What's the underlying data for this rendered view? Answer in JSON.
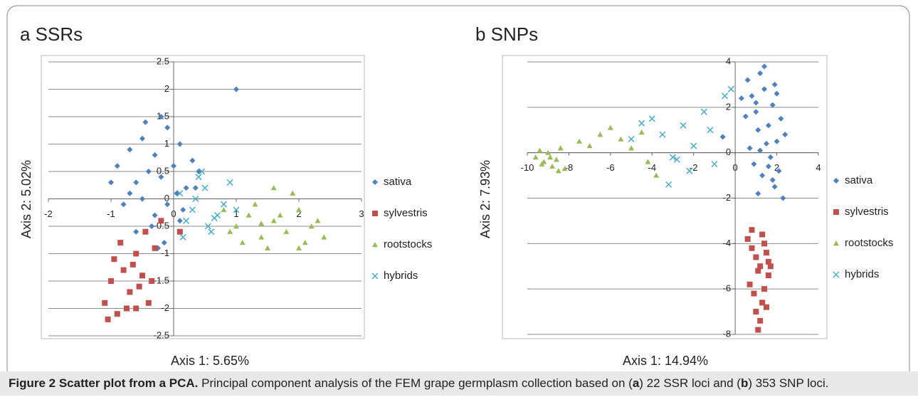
{
  "chart_data": [
    {
      "type": "scatter",
      "title": "a SSRs",
      "xlabel": "Axis 1:  5.65%",
      "ylabel": "Axis 2: 5.02%",
      "xlim": [
        -2,
        3
      ],
      "ylim": [
        -2.5,
        2.5
      ],
      "xticks": [
        -2,
        -1,
        0,
        1,
        2,
        3
      ],
      "yticks": [
        -2.5,
        -2,
        -1.5,
        -1,
        -0.5,
        0,
        0.5,
        1,
        1.5,
        2,
        2.5
      ],
      "grid": true,
      "legend": "right",
      "series": [
        {
          "name": "sativa",
          "color": "#4f81bd",
          "marker": "diamond",
          "x": [
            -0.9,
            -0.7,
            -0.5,
            -0.3,
            -0.1,
            0.1,
            0.3,
            -0.6,
            -0.4,
            -0.2,
            0,
            0.2,
            -0.8,
            -0.5,
            -0.3,
            -0.1,
            0.05,
            -0.6,
            -0.35,
            -0.15,
            0.1,
            -0.45,
            -0.25,
            0.35,
            1,
            -0.7,
            -0.2,
            0.4,
            -1,
            0.15
          ],
          "values": [
            0.6,
            0.9,
            1.1,
            0.8,
            1.3,
            1.0,
            0.7,
            0.3,
            0.5,
            0.4,
            0.6,
            0.2,
            -0.1,
            0,
            -0.3,
            -0.1,
            0.1,
            -0.6,
            -0.5,
            -0.8,
            -0.4,
            1.4,
            -0.9,
            0.2,
            2,
            0.1,
            1.5,
            0.5,
            0.3,
            -0.2
          ]
        },
        {
          "name": "sylvestris",
          "color": "#c0504d",
          "marker": "square",
          "x": [
            -1.1,
            -1,
            -0.9,
            -0.8,
            -0.7,
            -0.6,
            -0.5,
            -0.4,
            -0.3,
            -0.95,
            -0.75,
            -0.55,
            -0.85,
            -0.65,
            -0.45,
            -1.05,
            -0.35,
            -0.2,
            0.1,
            -0.6
          ],
          "values": [
            -1.9,
            -1.5,
            -2.1,
            -1.3,
            -1.7,
            -1.0,
            -1.4,
            -1.9,
            -0.9,
            -1.1,
            -2.0,
            -1.6,
            -0.8,
            -1.2,
            -0.6,
            -2.2,
            -1.5,
            -0.4,
            -0.6,
            -2.0
          ]
        },
        {
          "name": "rootstocks",
          "color": "#9bbb59",
          "marker": "triangle",
          "x": [
            0.8,
            1.0,
            1.2,
            1.4,
            1.6,
            1.8,
            2.0,
            2.2,
            2.4,
            1.1,
            1.3,
            1.5,
            1.7,
            1.9,
            2.1,
            2.3,
            0.9,
            1.6,
            2.0,
            1.4
          ],
          "values": [
            -0.2,
            -0.5,
            -0.3,
            -0.7,
            -0.4,
            -0.6,
            -0.2,
            -0.5,
            -0.7,
            -0.8,
            -0.1,
            -0.9,
            -0.3,
            0.1,
            -0.8,
            -0.4,
            -0.6,
            0.2,
            -0.9,
            -0.45
          ]
        },
        {
          "name": "hybrids",
          "color": "#4bacc6",
          "marker": "cross",
          "x": [
            0.1,
            0.3,
            0.5,
            0.7,
            0.9,
            0.2,
            0.4,
            0.6,
            0.8,
            0.35,
            0.55,
            1.0,
            0.15,
            0.45,
            0.65
          ],
          "values": [
            0.1,
            -0.2,
            0.2,
            -0.3,
            0.3,
            -0.4,
            0.4,
            -0.6,
            -0.1,
            0,
            -0.5,
            -0.2,
            -0.7,
            0.5,
            -0.35
          ]
        }
      ]
    },
    {
      "type": "scatter",
      "title": "b SNPs",
      "xlabel": "Axis 1:  14.94%",
      "ylabel": "Axis 2: 7.93%",
      "xlim": [
        -10,
        4
      ],
      "ylim": [
        -8,
        4
      ],
      "xticks": [
        -10,
        -8,
        -6,
        -4,
        -2,
        0,
        2,
        4
      ],
      "yticks": [
        -8,
        -6,
        -4,
        -2,
        0,
        2,
        4
      ],
      "grid": true,
      "legend": "right",
      "series": [
        {
          "name": "sativa",
          "color": "#4f81bd",
          "marker": "diamond",
          "x": [
            0.6,
            0.8,
            1,
            1.2,
            1.4,
            1.6,
            1.8,
            2,
            2.2,
            0.7,
            0.9,
            1.1,
            1.3,
            1.5,
            1.7,
            1.9,
            2.1,
            2.4,
            1.0,
            1.4,
            1.8,
            2.3,
            0.5,
            1.2,
            1.6,
            2.0,
            0.3,
            -0.6,
            1.1,
            1.9
          ],
          "values": [
            3.2,
            2.5,
            1.8,
            3.5,
            2.8,
            1.2,
            2.1,
            0.5,
            1.5,
            0.2,
            -0.5,
            1.0,
            -1.0,
            0.4,
            -0.2,
            -1.5,
            -0.8,
            0.8,
            2.2,
            3.8,
            -1.2,
            -2.0,
            1.6,
            0.1,
            -0.6,
            2.6,
            2.4,
            0.7,
            -1.8,
            3.0
          ]
        },
        {
          "name": "sylvestris",
          "color": "#c0504d",
          "marker": "square",
          "x": [
            0.6,
            0.8,
            1,
            1.2,
            1.4,
            1.6,
            0.7,
            0.9,
            1.1,
            1.3,
            1.5,
            1.7,
            0.8,
            1.0,
            1.2,
            1.4,
            1.6,
            1.1,
            1.3,
            1.5
          ],
          "values": [
            -3.8,
            -4.2,
            -4.6,
            -5.0,
            -4.0,
            -5.4,
            -5.8,
            -6.2,
            -5.2,
            -6.6,
            -4.4,
            -5.0,
            -3.4,
            -7.0,
            -7.4,
            -6.0,
            -4.8,
            -7.8,
            -3.6,
            -6.8
          ]
        },
        {
          "name": "rootstocks",
          "color": "#9bbb59",
          "marker": "triangle",
          "x": [
            -9.6,
            -9.4,
            -9.2,
            -9,
            -8.8,
            -8.6,
            -8.4,
            -8.2,
            -9.3,
            -8.9,
            -7.5,
            -7,
            -6.5,
            -6,
            -5.5,
            -5,
            -4.5,
            -3.8,
            -4.2,
            -8.5
          ],
          "values": [
            -0.2,
            0.1,
            -0.4,
            0,
            -0.6,
            -0.3,
            0.2,
            -0.7,
            -0.5,
            -0.2,
            0.5,
            0.3,
            0.8,
            1.1,
            0.6,
            0.2,
            0.9,
            -1.0,
            -0.4,
            -0.8
          ]
        },
        {
          "name": "hybrids",
          "color": "#4bacc6",
          "marker": "cross",
          "x": [
            -4,
            -3.5,
            -3,
            -2.5,
            -2,
            -1.5,
            -1,
            -0.5,
            -5,
            -4.5,
            -3.2,
            -2.2,
            -1.2,
            -0.2,
            -2.8
          ],
          "values": [
            1.5,
            0.8,
            -0.2,
            1.2,
            0.3,
            1.8,
            -0.5,
            2.5,
            0.6,
            1.3,
            -1.4,
            -0.8,
            1.0,
            2.8,
            -0.3
          ]
        }
      ]
    }
  ],
  "caption": {
    "label": "Figure 2 Scatter plot from a PCA.",
    "parts": [
      "Principal component analysis of the FEM grape germplasm collection based on (",
      "a",
      ") 22 SSR loci and (",
      "b",
      ") 353 SNP loci."
    ]
  }
}
